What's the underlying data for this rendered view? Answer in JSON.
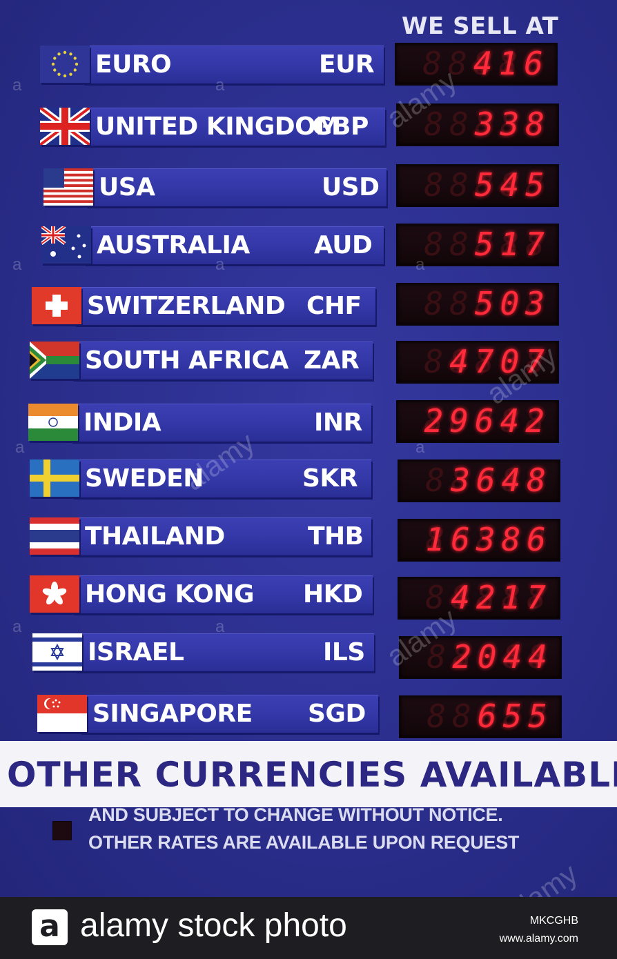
{
  "board": {
    "header": "WE SELL AT",
    "rates": [
      {
        "country": "EURO",
        "code": "EUR",
        "rate": "416",
        "flag": "eu-flag"
      },
      {
        "country": "UNITED KINGDOM",
        "code": "GBP",
        "rate": "338",
        "flag": "uk-flag"
      },
      {
        "country": "USA",
        "code": "USD",
        "rate": "545",
        "flag": "us-flag"
      },
      {
        "country": "AUSTRALIA",
        "code": "AUD",
        "rate": "517",
        "flag": "australia-flag"
      },
      {
        "country": "SWITZERLAND",
        "code": "CHF",
        "rate": "503",
        "flag": "switzerland-flag"
      },
      {
        "country": "SOUTH AFRICA",
        "code": "ZAR",
        "rate": "4707",
        "flag": "south-africa-flag"
      },
      {
        "country": "INDIA",
        "code": "INR",
        "rate": "29642",
        "flag": "india-flag"
      },
      {
        "country": "SWEDEN",
        "code": "SKR",
        "rate": "3648",
        "flag": "sweden-flag"
      },
      {
        "country": "THAILAND",
        "code": "THB",
        "rate": "16386",
        "flag": "thailand-flag"
      },
      {
        "country": "HONG KONG",
        "code": "HKD",
        "rate": "4217",
        "flag": "hong-kong-flag"
      },
      {
        "country": "ISRAEL",
        "code": "ILS",
        "rate": "2044",
        "flag": "israel-flag"
      },
      {
        "country": "SINGAPORE",
        "code": "SGD",
        "rate": "655",
        "flag": "singapore-flag"
      }
    ],
    "banner": "OTHER CURRENCIES AVAILABLE",
    "notice_line_1": "AND SUBJECT TO CHANGE WITHOUT NOTICE.",
    "notice_line_2": "OTHER RATES ARE AVAILABLE UPON REQUEST"
  },
  "watermark": {
    "text": "alamy",
    "letter": "a"
  },
  "footer": {
    "logo_letter": "a",
    "brand": "alamy stock photo",
    "image_id": "MKCGHB",
    "url": "www.alamy.com"
  },
  "colors": {
    "board_blue": "#2b2e8c",
    "strip_blue": "#3236a5",
    "led_red": "#ff2a3a",
    "banner_text": "#2c2782"
  }
}
